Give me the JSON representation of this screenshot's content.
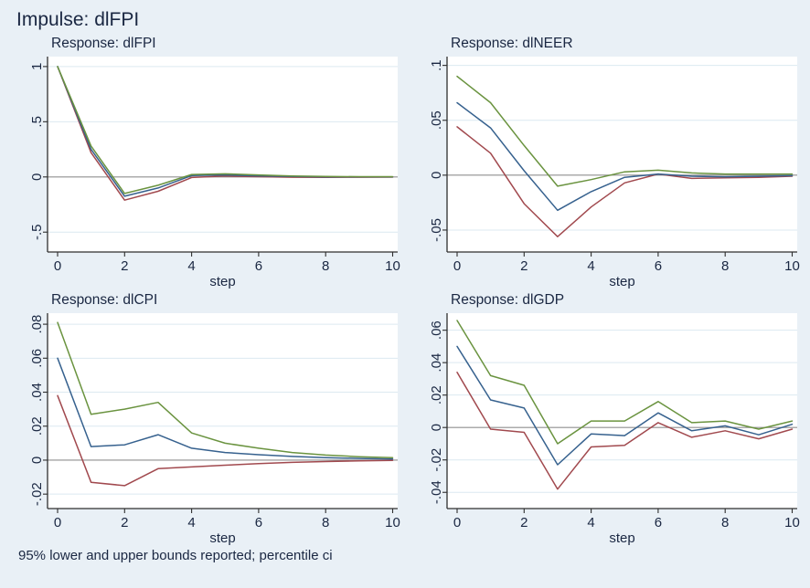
{
  "colors": {
    "background": "#e9f0f6",
    "plot_background": "#ffffff",
    "gridline": "#dce9f1",
    "zero_line": "#8f8f8f",
    "axis": "#2e2e2e",
    "text": "#1a2742",
    "upper_bound": "#6a933f",
    "irf": "#36618e",
    "lower_bound": "#a1494e"
  },
  "chart_data": {
    "type": "line",
    "title": "Impulse: dlFPI",
    "note": "95% lower and upper bounds reported; percentile ci",
    "xlabel": "step",
    "x": [
      0,
      1,
      2,
      3,
      4,
      5,
      6,
      7,
      8,
      9,
      10
    ],
    "x_ticks": [
      0,
      2,
      4,
      6,
      8,
      10
    ],
    "xlim": [
      -0.3,
      10.15
    ],
    "grid": true,
    "legend_position": "none",
    "panels": [
      {
        "subtitle": "Response: dlFPI",
        "ylim": [
          -0.68,
          1.09
        ],
        "yticks": [
          {
            "value": 1,
            "label": "1"
          },
          {
            "value": 0.5,
            "label": ".5"
          },
          {
            "value": 0,
            "label": "0"
          },
          {
            "value": -0.5,
            "label": "-.5"
          }
        ],
        "series": [
          {
            "name": "95% upper bound",
            "role": "upper_bound",
            "values": [
              1,
              0.28,
              -0.15,
              -0.075,
              0.022,
              0.028,
              0.018,
              0.009,
              0.004,
              0.002,
              0.002
            ]
          },
          {
            "name": "irf",
            "role": "irf",
            "values": [
              1,
              0.25,
              -0.175,
              -0.1,
              0.012,
              0.018,
              0.01,
              0.004,
              0.001,
              0,
              0
            ]
          },
          {
            "name": "95% lower bound",
            "role": "lower_bound",
            "values": [
              1,
              0.22,
              -0.21,
              -0.13,
              -0.005,
              0.008,
              0.002,
              -0.003,
              -0.004,
              -0.003,
              -0.002
            ]
          }
        ]
      },
      {
        "subtitle": "Response: dlNEER",
        "ylim": [
          -0.07,
          0.108
        ],
        "yticks": [
          {
            "value": 0.1,
            "label": ".1"
          },
          {
            "value": 0.05,
            "label": ".05"
          },
          {
            "value": 0,
            "label": "0"
          },
          {
            "value": -0.05,
            "label": "-.05"
          }
        ],
        "series": [
          {
            "name": "95% upper bound",
            "role": "upper_bound",
            "values": [
              0.09,
              0.066,
              0.027,
              -0.01,
              -0.004,
              0.003,
              0.0045,
              0.002,
              0.001,
              0.001,
              0.001
            ]
          },
          {
            "name": "irf",
            "role": "irf",
            "values": [
              0.066,
              0.043,
              0.004,
              -0.032,
              -0.015,
              -0.002,
              0.001,
              -0.001,
              -0.0015,
              -0.001,
              -0.0005
            ]
          },
          {
            "name": "95% lower bound",
            "role": "lower_bound",
            "values": [
              0.044,
              0.02,
              -0.026,
              -0.056,
              -0.029,
              -0.007,
              0.001,
              -0.003,
              -0.0025,
              -0.002,
              -0.001
            ]
          }
        ]
      },
      {
        "subtitle": "Response: dlCPI",
        "ylim": [
          -0.0285,
          0.0865
        ],
        "yticks": [
          {
            "value": 0.08,
            "label": ".08"
          },
          {
            "value": 0.06,
            "label": ".06"
          },
          {
            "value": 0.04,
            "label": ".04"
          },
          {
            "value": 0.02,
            "label": ".02"
          },
          {
            "value": 0,
            "label": "0"
          },
          {
            "value": -0.02,
            "label": "-.02"
          }
        ],
        "series": [
          {
            "name": "95% upper bound",
            "role": "upper_bound",
            "values": [
              0.081,
              0.027,
              0.03,
              0.034,
              0.016,
              0.01,
              0.007,
              0.0045,
              0.003,
              0.002,
              0.0015
            ]
          },
          {
            "name": "irf",
            "role": "irf",
            "values": [
              0.06,
              0.008,
              0.009,
              0.015,
              0.007,
              0.0045,
              0.0032,
              0.0022,
              0.0015,
              0.001,
              0.0007
            ]
          },
          {
            "name": "95% lower bound",
            "role": "lower_bound",
            "values": [
              0.038,
              -0.013,
              -0.015,
              -0.005,
              -0.004,
              -0.003,
              -0.002,
              -0.0013,
              -0.0008,
              -0.0004,
              -0.0002
            ]
          }
        ]
      },
      {
        "subtitle": "Response: dlGDP",
        "ylim": [
          -0.05,
          0.0705
        ],
        "yticks": [
          {
            "value": 0.06,
            "label": ".06"
          },
          {
            "value": 0.04,
            "label": ".04"
          },
          {
            "value": 0.02,
            "label": ".02"
          },
          {
            "value": 0,
            "label": "0"
          },
          {
            "value": -0.02,
            "label": "-.02"
          },
          {
            "value": -0.04,
            "label": "-.04"
          }
        ],
        "series": [
          {
            "name": "95% upper bound",
            "role": "upper_bound",
            "values": [
              0.066,
              0.032,
              0.026,
              -0.01,
              0.004,
              0.004,
              0.016,
              0.003,
              0.004,
              -0.001,
              0.004
            ]
          },
          {
            "name": "irf",
            "role": "irf",
            "values": [
              0.05,
              0.017,
              0.012,
              -0.023,
              -0.004,
              -0.005,
              0.009,
              -0.002,
              0.001,
              -0.0045,
              0.002
            ]
          },
          {
            "name": "95% lower bound",
            "role": "lower_bound",
            "values": [
              0.034,
              -0.001,
              -0.003,
              -0.038,
              -0.012,
              -0.011,
              0.003,
              -0.006,
              -0.002,
              -0.007,
              -0.001
            ]
          }
        ]
      }
    ]
  }
}
